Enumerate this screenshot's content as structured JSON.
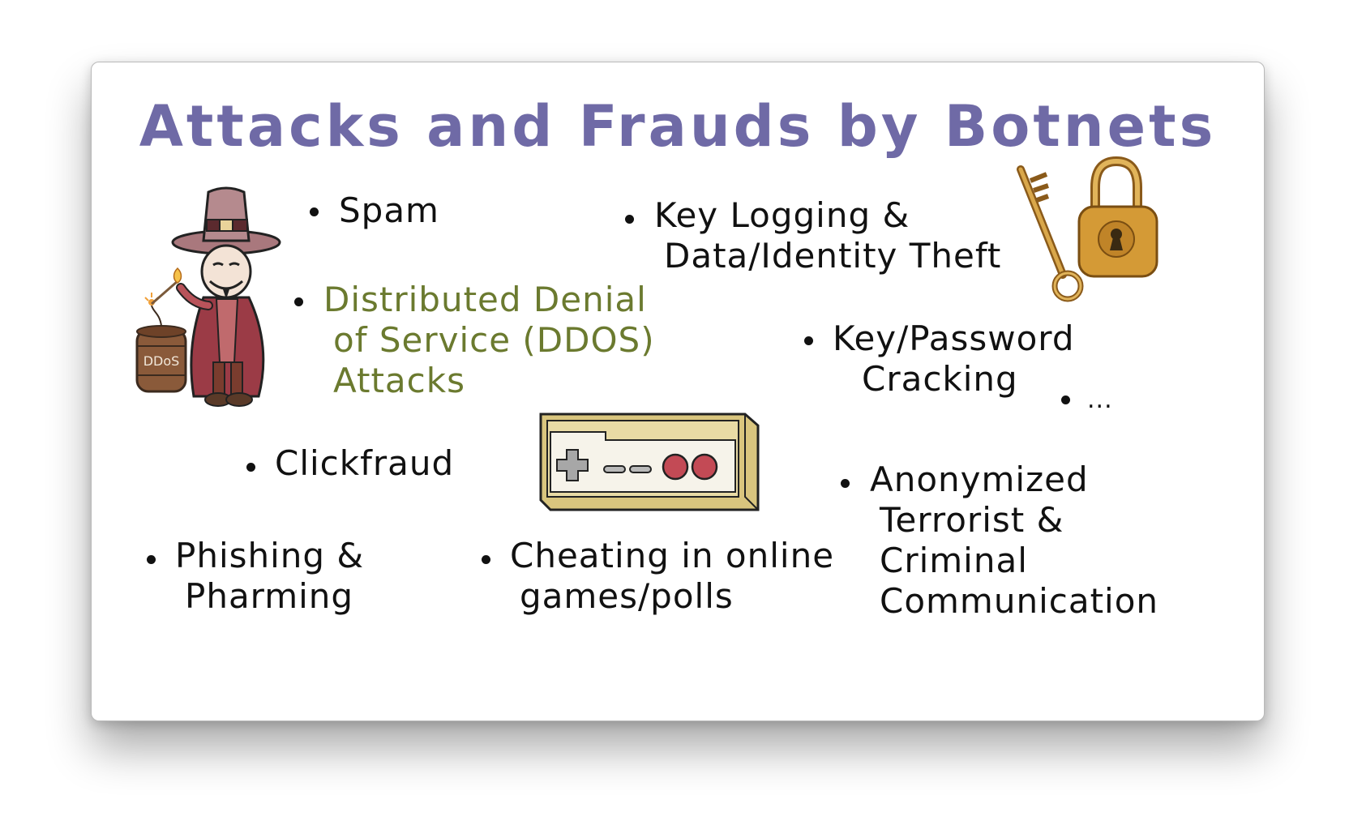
{
  "title": "Attacks and Frauds by Botnets",
  "colors": {
    "title": "#6f6aa6",
    "text": "#111111",
    "highlight": "#6b7a2f"
  },
  "items": {
    "spam": {
      "lines": [
        "Spam"
      ]
    },
    "ddos": {
      "lines": [
        "Distributed Denial",
        "of Service (DDOS)",
        "Attacks"
      ],
      "highlighted": true
    },
    "keylogging": {
      "lines": [
        "Key Logging &",
        "Data/Identity Theft"
      ]
    },
    "cracking": {
      "lines": [
        "Key/Password",
        "Cracking"
      ]
    },
    "more": {
      "lines": [
        "..."
      ]
    },
    "clickfraud": {
      "lines": [
        "Clickfraud"
      ]
    },
    "phishing": {
      "lines": [
        "Phishing &",
        "Pharming"
      ]
    },
    "cheating": {
      "lines": [
        "Cheating in online",
        "games/polls"
      ]
    },
    "anonymized": {
      "lines": [
        "Anonymized",
        "Terrorist &",
        "Criminal",
        "Communication"
      ]
    }
  },
  "illustrations": {
    "villain": {
      "icon": "villain-with-bomb-icon",
      "barrel_label": "DDoS"
    },
    "key_lock": {
      "icon": "key-and-padlock-icon"
    },
    "gamepad": {
      "icon": "game-controller-icon"
    }
  }
}
